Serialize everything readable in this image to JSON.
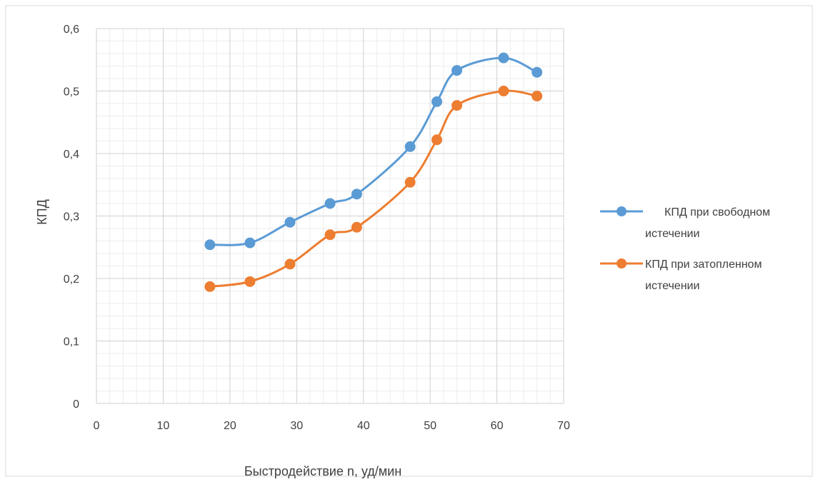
{
  "chart_data": {
    "type": "line",
    "smooth": true,
    "xlabel": "Быстродействие n, уд/мин",
    "ylabel": "КПД",
    "xlim": [
      0,
      70
    ],
    "ylim": [
      0,
      0.6
    ],
    "x_ticks": [
      "0",
      "10",
      "20",
      "30",
      "40",
      "50",
      "60",
      "70"
    ],
    "x_tick_values": [
      0,
      10,
      20,
      30,
      40,
      50,
      60,
      70
    ],
    "y_ticks": [
      "0",
      "0,1",
      "0,2",
      "0,3",
      "0,4",
      "0,5",
      "0,6"
    ],
    "y_tick_values": [
      0,
      0.1,
      0.2,
      0.3,
      0.4,
      0.5,
      0.6
    ],
    "grid": true,
    "minor_grid": true,
    "legend_position": "right",
    "series": [
      {
        "name": "КПД при свободном истечении",
        "legend_lines": [
          "КПД при свободном",
          "истечении"
        ],
        "color": "#5B9BD5",
        "x": [
          17,
          23,
          29,
          35,
          39,
          47,
          51,
          54,
          61,
          66
        ],
        "y": [
          0.254,
          0.257,
          0.29,
          0.32,
          0.335,
          0.411,
          0.483,
          0.533,
          0.553,
          0.53
        ]
      },
      {
        "name": "КПД при затопленном истечении",
        "legend_lines": [
          "КПД при затопленном",
          "истечении"
        ],
        "color": "#ED7D31",
        "x": [
          17,
          23,
          29,
          35,
          39,
          47,
          51,
          54,
          61,
          66
        ],
        "y": [
          0.187,
          0.195,
          0.223,
          0.27,
          0.282,
          0.354,
          0.422,
          0.477,
          0.5,
          0.492
        ]
      }
    ]
  }
}
